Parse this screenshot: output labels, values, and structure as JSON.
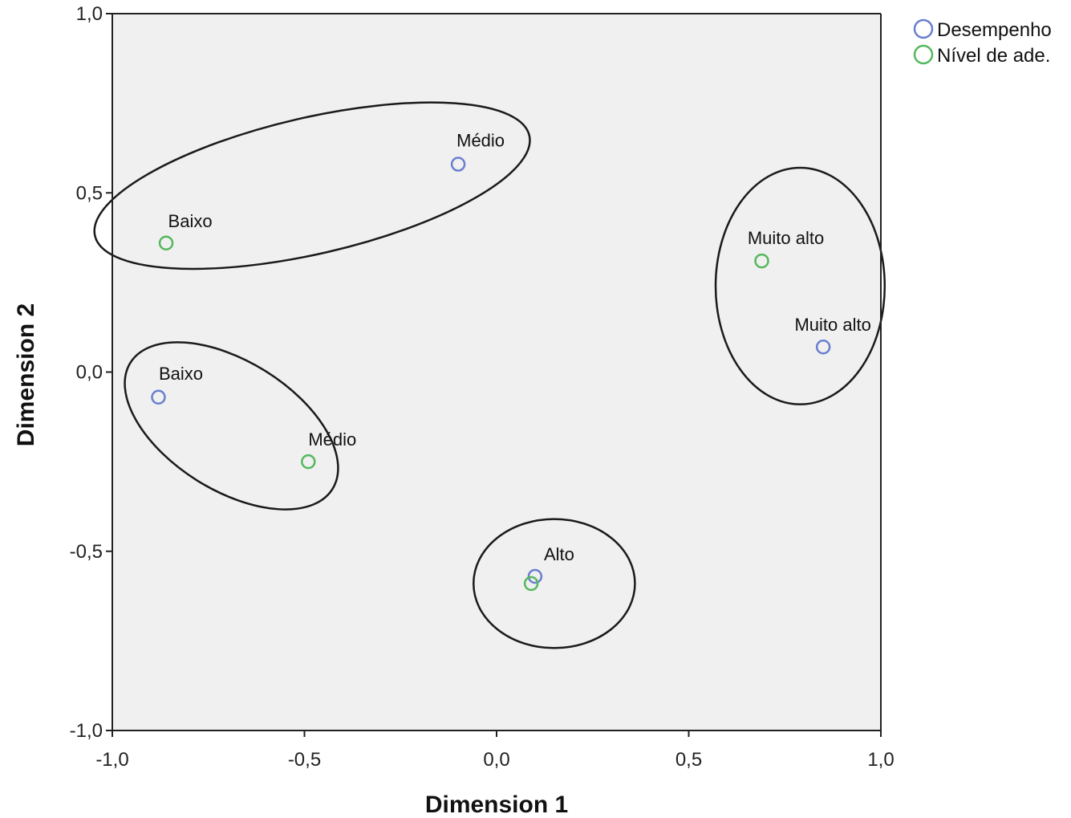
{
  "chart_data": {
    "type": "scatter",
    "title": "",
    "xlabel": "Dimension 1",
    "ylabel": "Dimension 2",
    "xlim": [
      -1.0,
      1.0
    ],
    "ylim": [
      -1.0,
      1.0
    ],
    "x_ticks": [
      -1.0,
      -0.5,
      0.0,
      0.5,
      1.0
    ],
    "x_tick_labels": [
      "-1,0",
      "-0,5",
      "0,0",
      "0,5",
      "1,0"
    ],
    "y_ticks": [
      1.0,
      0.5,
      0.0,
      -0.5,
      -1.0
    ],
    "y_tick_labels": [
      "1,0",
      "0,5",
      "0,0",
      "-0,5",
      "-1,0"
    ],
    "grid": false,
    "legend_position": "top-right (outside plot)",
    "colors": {
      "plot_bg": "#f0f0f0",
      "desempenho": "#6a7fd0",
      "nivel": "#55b85e"
    },
    "series": [
      {
        "name": "Desempenho",
        "color": "#6a7fd0",
        "points": [
          {
            "x": -0.88,
            "y": -0.07,
            "label": "Baixo"
          },
          {
            "x": -0.1,
            "y": 0.58,
            "label": "Médio"
          },
          {
            "x": 0.1,
            "y": -0.57,
            "label": "Alto"
          },
          {
            "x": 0.85,
            "y": 0.07,
            "label": "Muito alto"
          }
        ]
      },
      {
        "name": "Nível de ade.",
        "color": "#55b85e",
        "points": [
          {
            "x": -0.86,
            "y": 0.36,
            "label": "Baixo"
          },
          {
            "x": -0.49,
            "y": -0.25,
            "label": "Médio"
          },
          {
            "x": 0.09,
            "y": -0.59,
            "label": "Alto"
          },
          {
            "x": 0.69,
            "y": 0.31,
            "label": "Muito alto"
          }
        ]
      }
    ],
    "annotations": [
      {
        "type": "ellipse",
        "group": [
          "Baixo (Nível de ade.)",
          "Médio (Desempenho)"
        ],
        "center": [
          -0.48,
          0.52
        ],
        "radii": [
          0.58,
          0.19
        ]
      },
      {
        "type": "ellipse",
        "group": [
          "Baixo (Desempenho)",
          "Médio (Nível de ade.)"
        ],
        "center": [
          -0.69,
          -0.15
        ],
        "radii": [
          0.31,
          0.18
        ]
      },
      {
        "type": "ellipse",
        "group": [
          "Muito alto (Desempenho)",
          "Muito alto (Nível de ade.)"
        ],
        "center": [
          0.79,
          0.24
        ],
        "radii": [
          0.22,
          0.33
        ]
      },
      {
        "type": "ellipse",
        "group": [
          "Alto (Desempenho)",
          "Alto (Nível de ade.)"
        ],
        "center": [
          0.15,
          -0.59
        ],
        "radii": [
          0.21,
          0.18
        ]
      }
    ]
  }
}
